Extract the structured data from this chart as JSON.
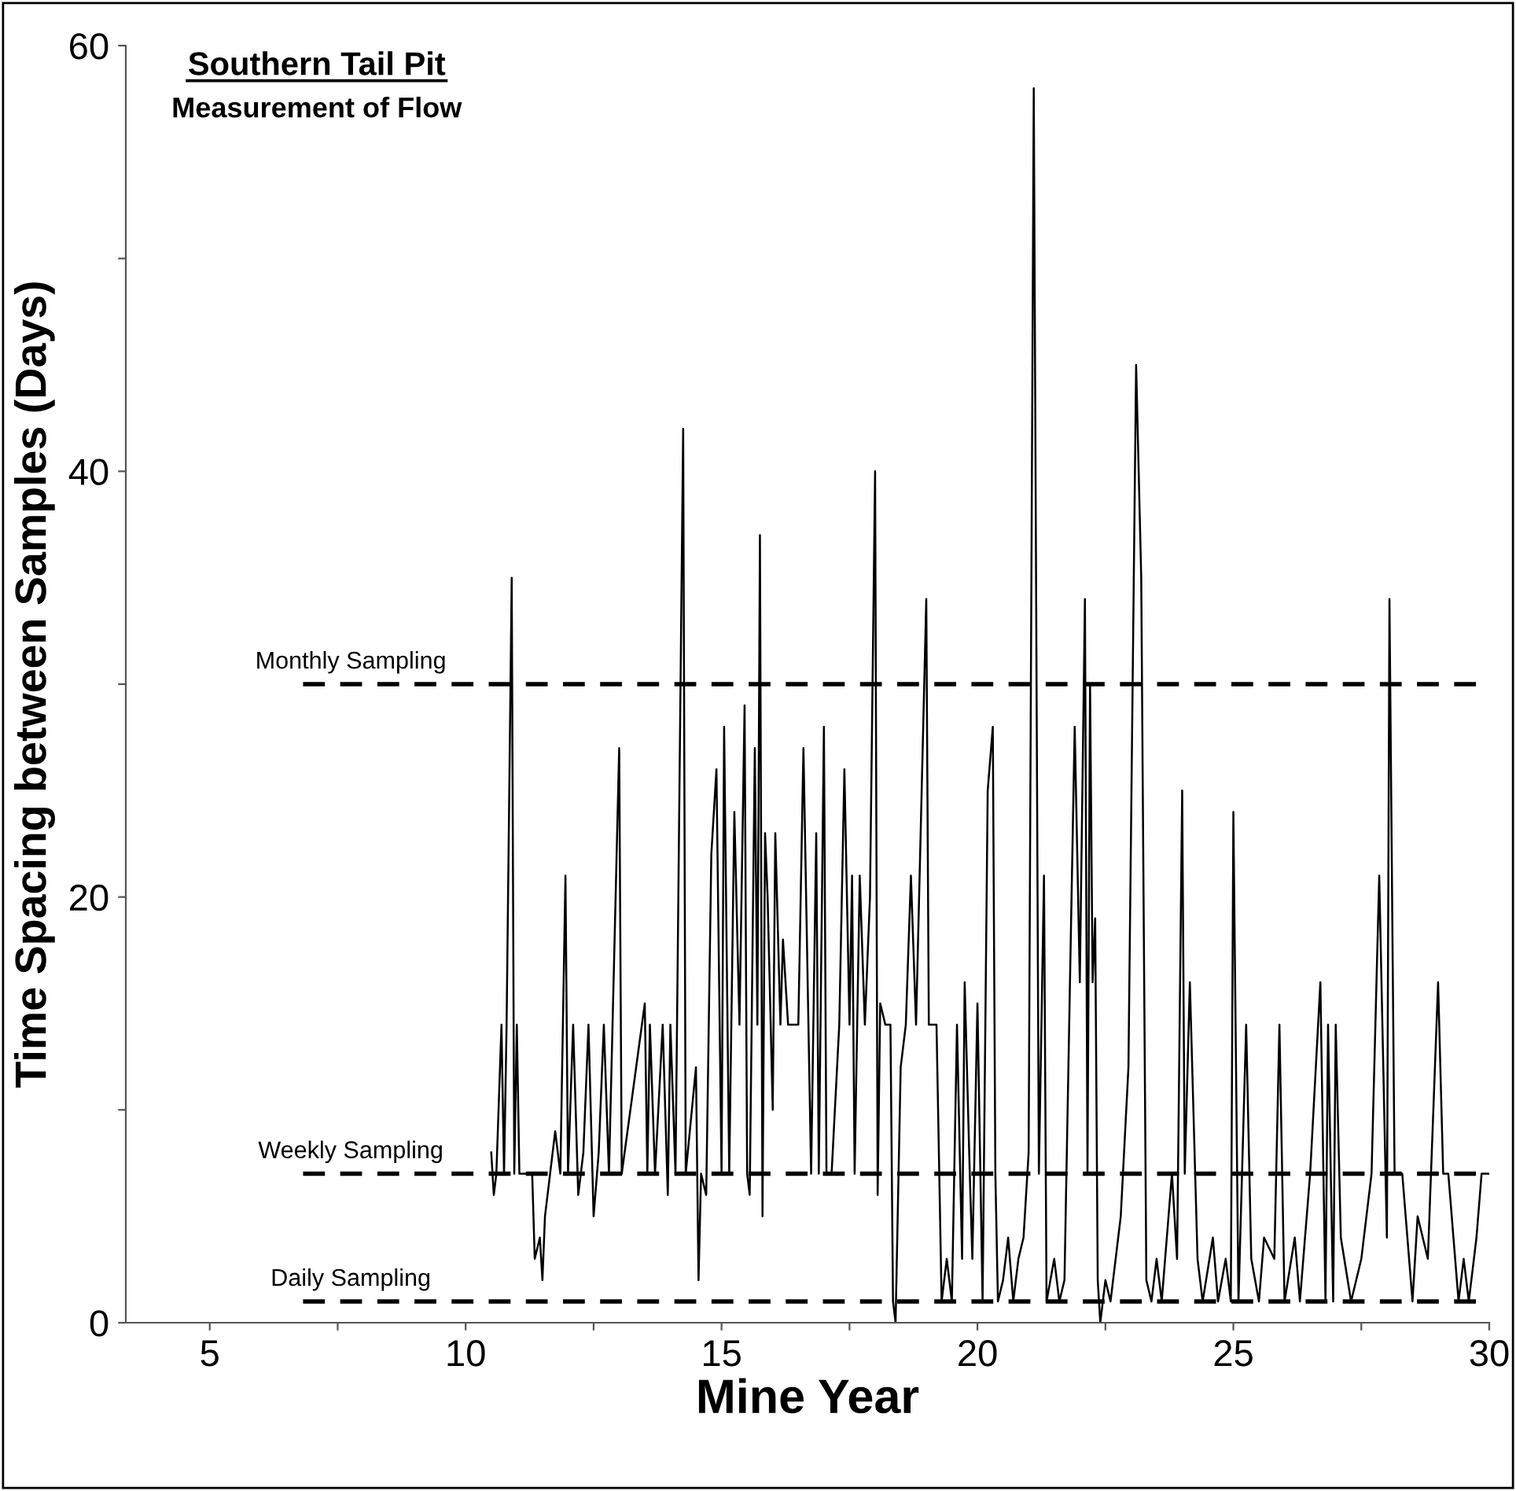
{
  "chart_data": {
    "type": "line",
    "title": "Southern Tail Pit",
    "subtitle": "Measurement of Flow",
    "xlabel": "Mine Year",
    "ylabel": "Time Spacing between Samples (Days)",
    "xlim": [
      3.36,
      30
    ],
    "ylim": [
      0,
      60
    ],
    "xticks": [
      5,
      {
        "value": 7.5,
        "label": null
      },
      10,
      {
        "value": 12.5,
        "label": null
      },
      15,
      {
        "value": 17.5,
        "label": null
      },
      20,
      {
        "value": 22.5,
        "label": null
      },
      25,
      {
        "value": 27.5,
        "label": null
      },
      30
    ],
    "yticks": [
      0,
      {
        "value": 10,
        "label": null
      },
      20,
      {
        "value": 30,
        "label": null
      },
      40,
      {
        "value": 50,
        "label": null
      },
      60
    ],
    "grid": false,
    "legend": false,
    "marker": "none",
    "line_style": "solid",
    "ref_lines": [
      {
        "axis": "y",
        "value": 30,
        "label": "Monthly Sampling",
        "line_style": "dashed",
        "color": "#000000"
      },
      {
        "axis": "y",
        "value": 7,
        "label": "Weekly Sampling",
        "line_style": "dashed",
        "color": "#000000"
      },
      {
        "axis": "y",
        "value": 1,
        "label": "Daily Sampling",
        "line_style": "dashed",
        "color": "#000000"
      }
    ],
    "series": [
      {
        "color": "#000000",
        "x": [
          10.5,
          10.55,
          10.6,
          10.7,
          10.75,
          10.8,
          10.9,
          10.95,
          11.0,
          11.05,
          11.3,
          11.35,
          11.45,
          11.5,
          11.55,
          11.65,
          11.75,
          11.85,
          11.95,
          12.0,
          12.1,
          12.2,
          12.3,
          12.4,
          12.5,
          12.6,
          12.7,
          12.8,
          13.0,
          13.05,
          13.5,
          13.55,
          13.6,
          13.7,
          13.85,
          13.95,
          14.0,
          14.1,
          14.25,
          14.3,
          14.5,
          14.55,
          14.6,
          14.7,
          14.8,
          14.9,
          15.0,
          15.05,
          15.15,
          15.25,
          15.35,
          15.45,
          15.5,
          15.55,
          15.65,
          15.7,
          15.75,
          15.8,
          15.85,
          15.9,
          16.0,
          16.05,
          16.15,
          16.2,
          16.3,
          16.5,
          16.6,
          16.75,
          16.85,
          16.9,
          17.0,
          17.05,
          17.15,
          17.3,
          17.4,
          17.5,
          17.55,
          17.6,
          17.7,
          17.8,
          17.9,
          18.0,
          18.05,
          18.1,
          18.2,
          18.3,
          18.35,
          18.4,
          18.5,
          18.6,
          18.7,
          18.8,
          19.0,
          19.05,
          19.2,
          19.3,
          19.4,
          19.5,
          19.6,
          19.7,
          19.75,
          19.85,
          19.9,
          20.0,
          20.1,
          20.2,
          20.3,
          20.35,
          20.4,
          20.5,
          20.6,
          20.7,
          20.8,
          20.9,
          21.0,
          21.1,
          21.2,
          21.3,
          21.35,
          21.5,
          21.6,
          21.7,
          21.9,
          22.0,
          22.1,
          22.15,
          22.2,
          22.25,
          22.3,
          22.35,
          22.4,
          22.5,
          22.6,
          22.8,
          22.95,
          23.1,
          23.2,
          23.3,
          23.4,
          23.5,
          23.6,
          23.7,
          23.8,
          23.9,
          24.0,
          24.05,
          24.15,
          24.3,
          24.4,
          24.6,
          24.7,
          24.85,
          24.95,
          25.0,
          25.1,
          25.25,
          25.35,
          25.5,
          25.6,
          25.8,
          25.9,
          26.0,
          26.2,
          26.3,
          26.5,
          26.7,
          26.8,
          26.85,
          26.95,
          27.0,
          27.1,
          27.3,
          27.5,
          27.7,
          27.85,
          28.0,
          28.05,
          28.15,
          28.3,
          28.5,
          28.6,
          28.8,
          29.0,
          29.1,
          29.2,
          29.4,
          29.5,
          29.6,
          29.75,
          29.85,
          30.0
        ],
        "values": [
          8,
          6,
          7,
          14,
          7,
          14,
          35,
          7,
          14,
          7,
          7,
          3,
          4,
          2,
          5,
          7,
          9,
          7,
          21,
          7,
          14,
          6,
          8,
          14,
          5,
          8,
          14,
          7,
          27,
          7,
          15,
          7,
          14,
          7,
          14,
          6,
          14,
          7,
          42,
          7,
          12,
          2,
          7,
          6,
          22,
          26,
          7,
          28,
          7,
          24,
          14,
          29,
          7,
          6,
          27,
          14,
          37,
          5,
          23,
          20,
          10,
          23,
          14,
          18,
          14,
          14,
          27,
          7,
          23,
          7,
          28,
          7,
          7,
          14,
          26,
          14,
          21,
          7,
          21,
          14,
          20,
          40,
          6,
          15,
          14,
          14,
          1,
          0,
          12,
          14,
          21,
          14,
          34,
          14,
          14,
          1,
          3,
          1,
          14,
          3,
          16,
          7,
          3,
          15,
          1,
          25,
          28,
          7,
          1,
          2,
          4,
          1,
          3,
          4,
          8,
          58,
          7,
          21,
          1,
          3,
          1,
          2,
          28,
          16,
          34,
          7,
          30,
          16,
          19,
          2,
          0,
          2,
          1,
          5,
          12,
          45,
          35,
          2,
          1,
          3,
          1,
          4,
          7,
          3,
          25,
          7,
          16,
          3,
          1,
          4,
          1,
          3,
          1,
          24,
          1,
          14,
          3,
          1,
          4,
          3,
          14,
          1,
          4,
          1,
          7,
          16,
          1,
          14,
          1,
          14,
          4,
          1,
          3,
          7,
          21,
          4,
          34,
          7,
          7,
          1,
          5,
          3,
          16,
          7,
          7,
          1,
          3,
          1,
          4,
          7,
          7
        ]
      }
    ]
  }
}
